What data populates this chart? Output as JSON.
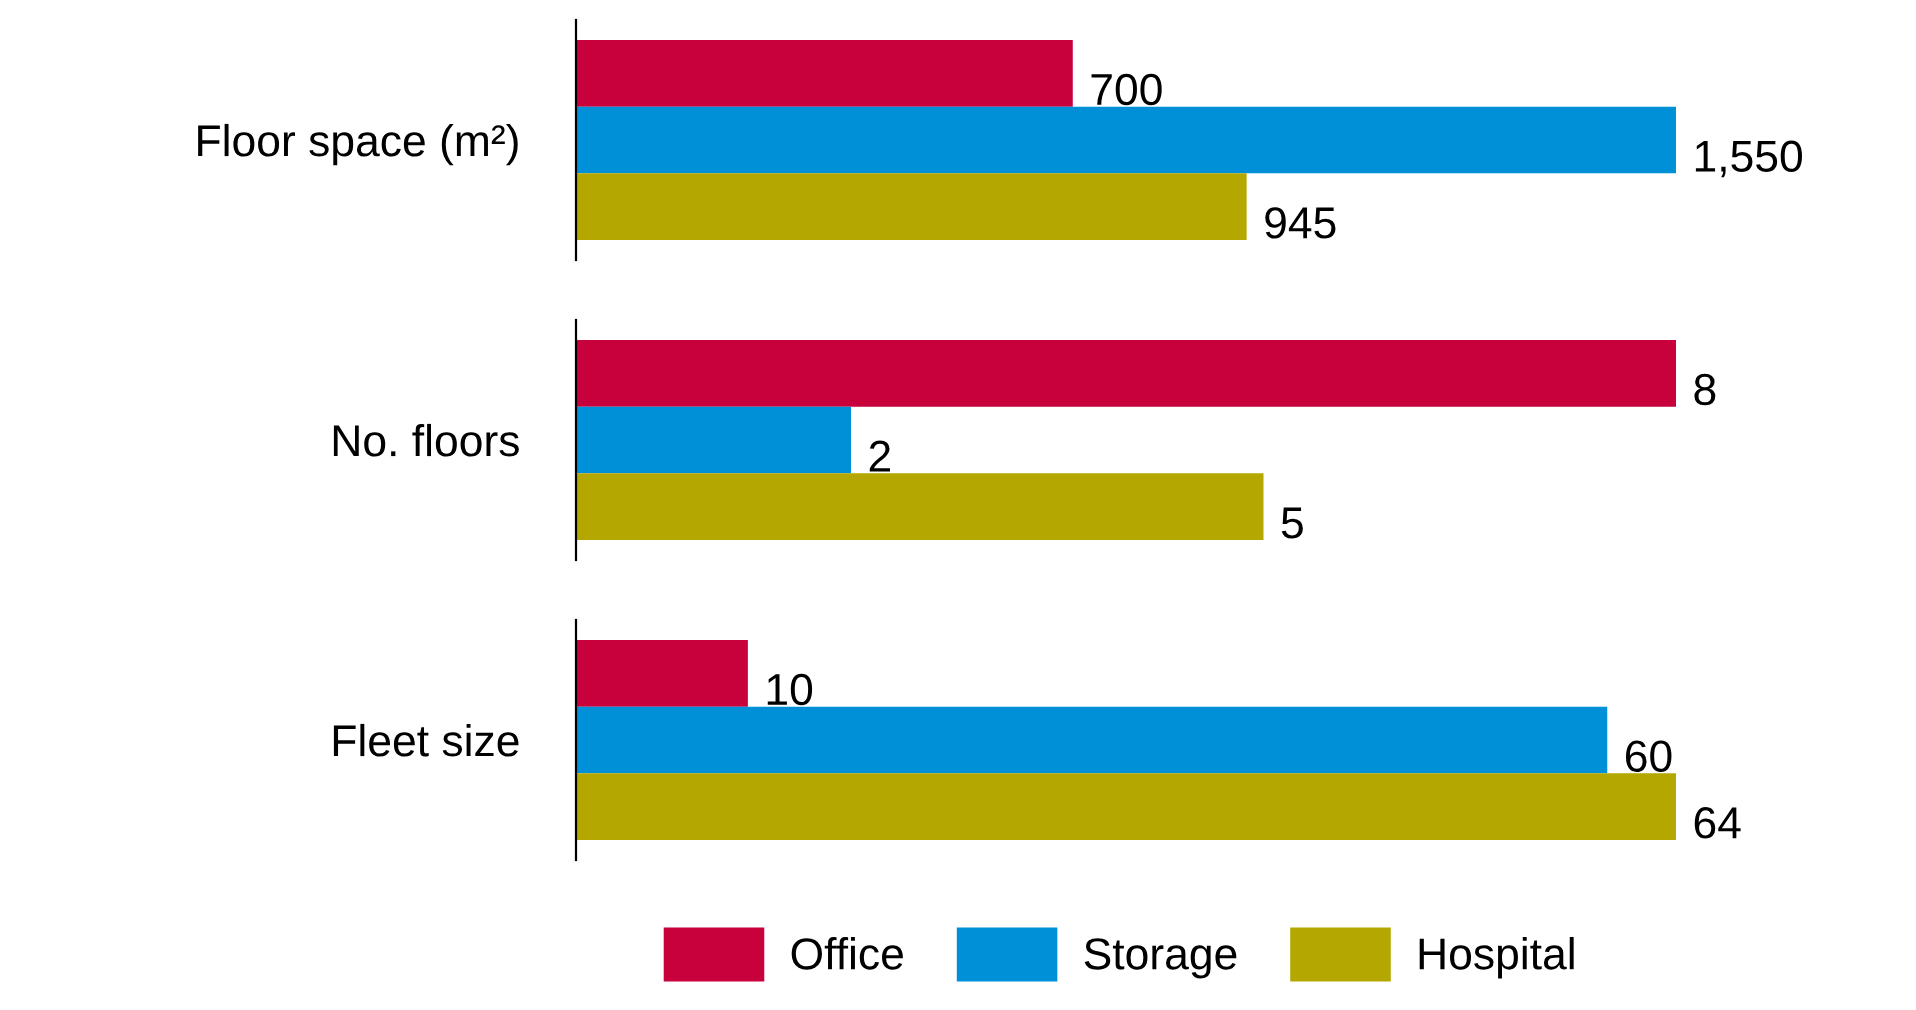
{
  "chart_data": [
    {
      "type": "bar",
      "orientation": "horizontal",
      "categories": [
        "Floor space (m²)"
      ],
      "data_labels": true,
      "legend": "bottom",
      "series": [
        {
          "name": "Office",
          "color": "#c8003c",
          "values": [
            700
          ]
        },
        {
          "name": "Storage",
          "color": "#0090d8",
          "values": [
            1550
          ],
          "value_labels": [
            "1,550"
          ]
        },
        {
          "name": "Hospital",
          "color": "#b4a800",
          "values": [
            945
          ]
        }
      ]
    },
    {
      "type": "bar",
      "orientation": "horizontal",
      "categories": [
        "No. floors"
      ],
      "data_labels": true,
      "series": [
        {
          "color": "#c8003c",
          "values": [
            8
          ]
        },
        {
          "color": "#0090d8",
          "values": [
            2
          ]
        },
        {
          "color": "#b4a800",
          "values": [
            5
          ]
        }
      ]
    },
    {
      "type": "bar",
      "orientation": "horizontal",
      "categories": [
        "Fleet size"
      ],
      "data_labels": true,
      "series": [
        {
          "color": "#c8003c",
          "values": [
            10
          ]
        },
        {
          "color": "#0090d8",
          "values": [
            60
          ]
        },
        {
          "color": "#b4a800",
          "values": [
            64
          ]
        }
      ]
    }
  ]
}
